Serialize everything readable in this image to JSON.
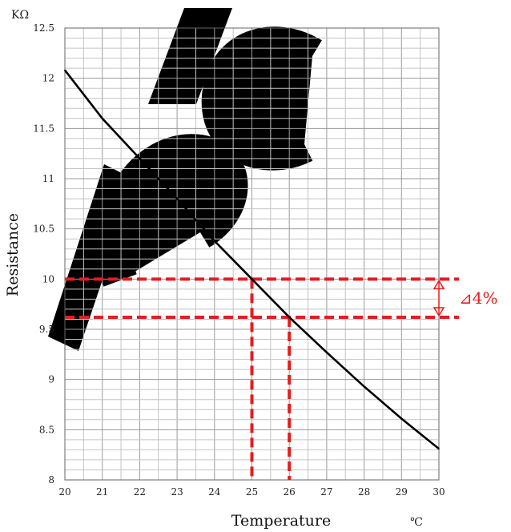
{
  "chart_data": {
    "type": "line",
    "xlabel": "Temperature",
    "x_unit": "℃",
    "ylabel": "Resistance",
    "y_unit": "KΩ",
    "xlim": [
      20,
      30
    ],
    "ylim": [
      8,
      12.5
    ],
    "x_ticks": [
      "20",
      "21",
      "22",
      "23",
      "24",
      "25",
      "26",
      "27",
      "28",
      "29",
      "30"
    ],
    "y_ticks": [
      "8",
      "8.5",
      "9",
      "9.5",
      "10",
      "10.5",
      "11",
      "11.5",
      "12",
      "12.5"
    ],
    "grid": true,
    "series": [
      {
        "x": [
          20,
          21,
          22,
          23,
          24,
          25,
          26,
          27,
          28,
          29,
          30
        ],
        "y": [
          12.08,
          11.6,
          11.2,
          10.8,
          10.38,
          10.0,
          9.62,
          9.27,
          8.93,
          8.61,
          8.31
        ]
      }
    ],
    "annotations": {
      "ref_lines": [
        {
          "x": 25,
          "y": 10.0
        },
        {
          "x": 26,
          "y": 9.62
        }
      ],
      "delta_label": "⊿4%"
    }
  },
  "colors": {
    "curve": "#000000",
    "reference": "#e41d1d",
    "grid": "#c4c4c4"
  }
}
